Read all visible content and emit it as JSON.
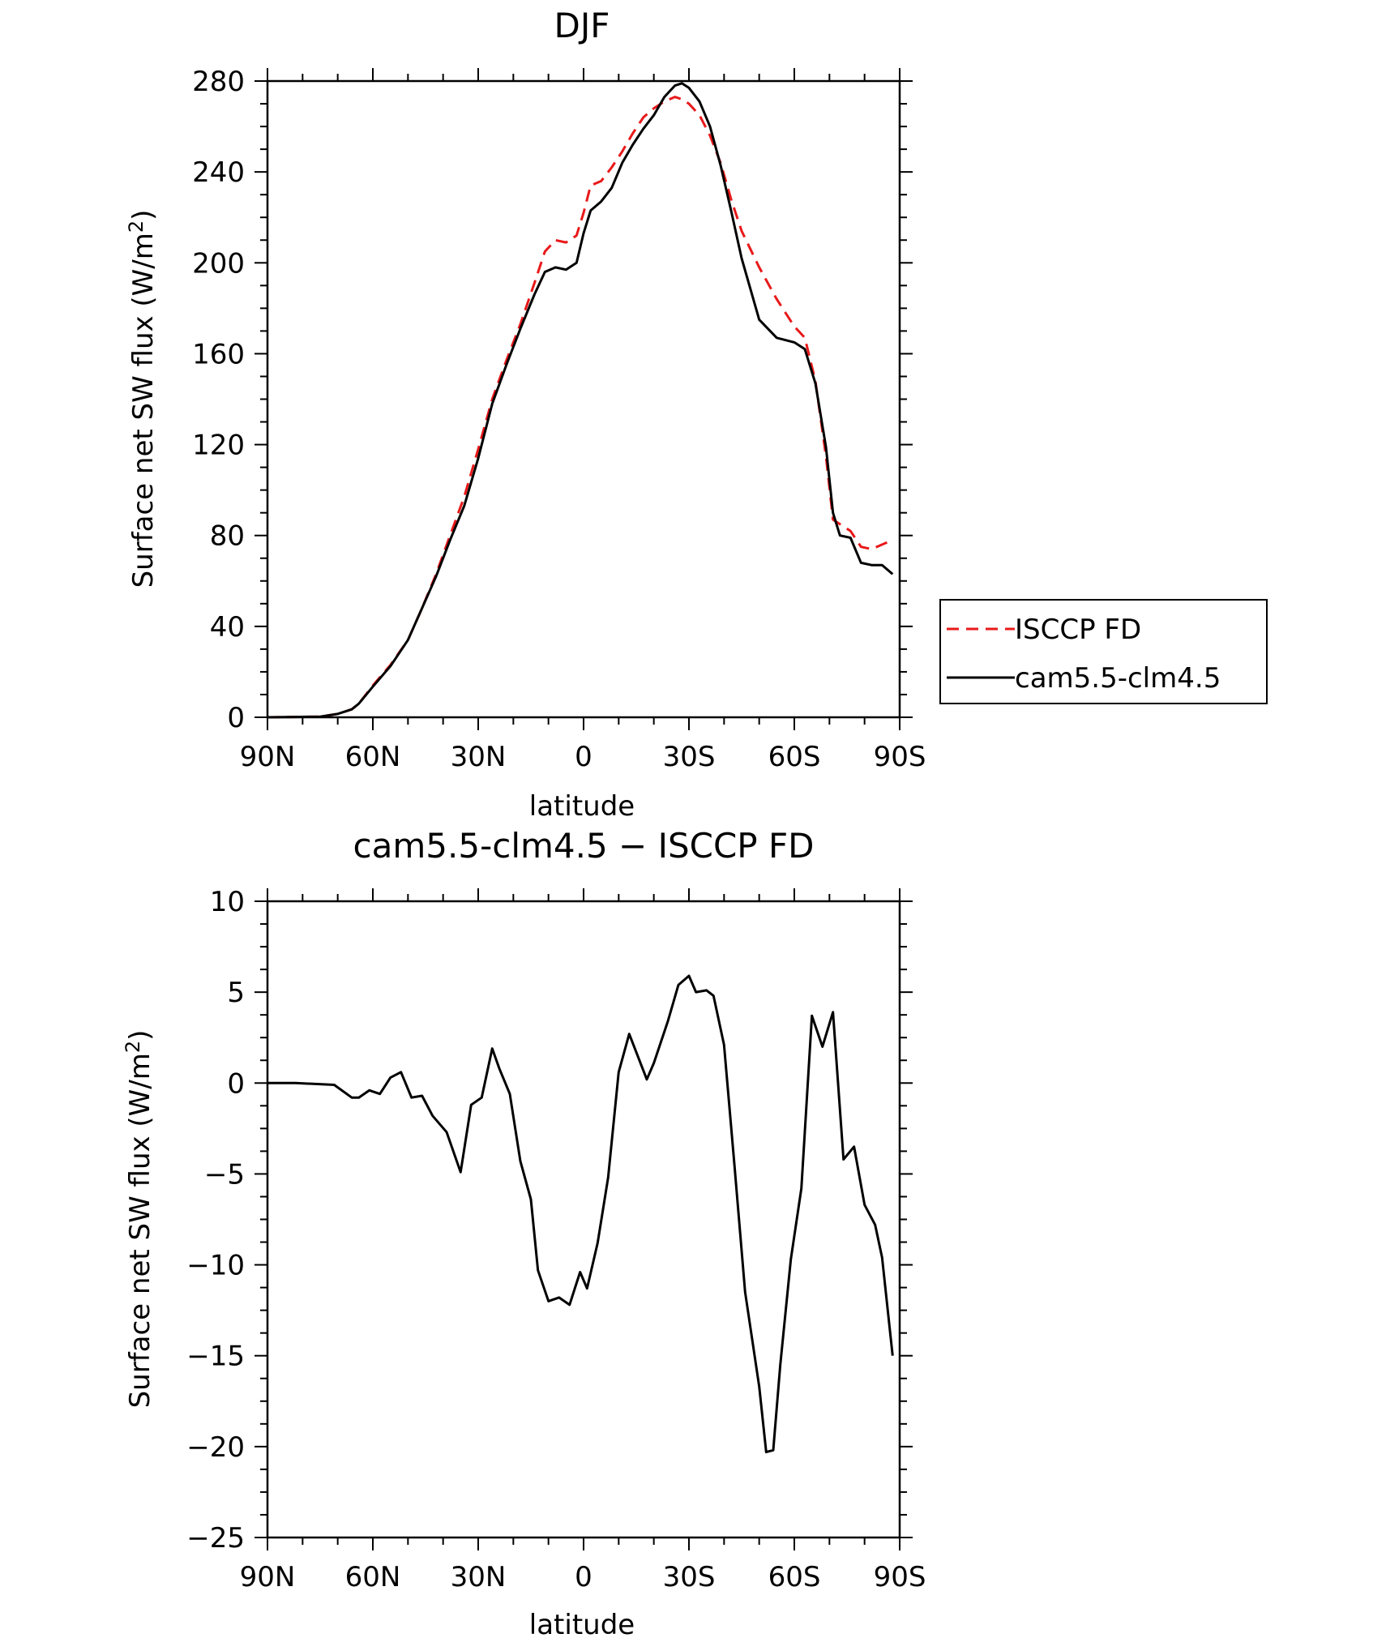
{
  "chart_data": [
    {
      "type": "line",
      "title": "DJF",
      "xlabel": "latitude",
      "ylabel": "Surface net SW flux (W/m²)",
      "xlim": [
        -90,
        90
      ],
      "ylim": [
        0,
        280
      ],
      "xticks": [
        -90,
        -60,
        -30,
        0,
        30,
        60,
        90
      ],
      "xtick_labels": [
        "90N",
        "60N",
        "30N",
        "0",
        "30S",
        "60S",
        "90S"
      ],
      "yticks": [
        0,
        40,
        80,
        120,
        160,
        200,
        240,
        280
      ],
      "ytick_labels": [
        "0",
        "40",
        "80",
        "120",
        "160",
        "200",
        "240",
        "280"
      ],
      "legend_position": "right",
      "series": [
        {
          "name": "ISCCP FD",
          "color": "#e8191a",
          "dash": "dashed",
          "x": [
            -90,
            -75,
            -70,
            -66,
            -64,
            -60,
            -55,
            -50,
            -46,
            -42,
            -38,
            -34,
            -30,
            -26,
            -22,
            -18,
            -14,
            -11,
            -8,
            -5,
            -2,
            0,
            2,
            5,
            8,
            11,
            14,
            17,
            20,
            23,
            26,
            28,
            30,
            33,
            36,
            39,
            42,
            45,
            50,
            55,
            60,
            63,
            66,
            69,
            71,
            73,
            76,
            79,
            82,
            85,
            88
          ],
          "y": [
            0,
            0.3,
            1.5,
            3.5,
            6,
            14,
            23,
            34,
            48,
            63,
            80,
            97,
            118,
            140,
            157,
            173,
            191,
            205,
            210,
            209,
            212,
            222,
            234,
            236,
            242,
            249,
            257,
            264,
            268,
            271,
            273,
            272,
            270,
            265,
            256,
            244,
            228,
            214,
            198,
            184,
            172,
            167,
            148,
            115,
            87,
            85,
            82,
            75,
            74,
            76,
            78
          ]
        },
        {
          "name": "cam5.5-clm4.5",
          "color": "#000000",
          "dash": "solid",
          "x": [
            -90,
            -75,
            -70,
            -66,
            -64,
            -60,
            -55,
            -50,
            -46,
            -42,
            -38,
            -34,
            -30,
            -26,
            -22,
            -18,
            -14,
            -11,
            -8,
            -5,
            -2,
            0,
            2,
            5,
            8,
            11,
            14,
            17,
            20,
            23,
            26,
            28,
            30,
            33,
            36,
            39,
            42,
            45,
            50,
            55,
            60,
            63,
            66,
            69,
            71,
            73,
            76,
            79,
            82,
            85,
            88
          ],
          "y": [
            0,
            0.3,
            1.5,
            3.5,
            6,
            13.5,
            22.5,
            34,
            48,
            62,
            78,
            93,
            114,
            138,
            155,
            171,
            186,
            196,
            198,
            197,
            200,
            213,
            223,
            227,
            233,
            244,
            252,
            259,
            265,
            273,
            278,
            279,
            277,
            271,
            260,
            243,
            223,
            202,
            175,
            167,
            165,
            162,
            147,
            119,
            90,
            80,
            79,
            68,
            67,
            67,
            63
          ]
        }
      ]
    },
    {
      "type": "line",
      "title": "cam5.5-clm4.5 − ISCCP FD",
      "xlabel": "latitude",
      "ylabel": "Surface net SW flux (W/m²)",
      "xlim": [
        -90,
        90
      ],
      "ylim": [
        -25,
        10
      ],
      "xticks": [
        -90,
        -60,
        -30,
        0,
        30,
        60,
        90
      ],
      "xtick_labels": [
        "90N",
        "60N",
        "30N",
        "0",
        "30S",
        "60S",
        "90S"
      ],
      "yticks": [
        -25,
        -20,
        -15,
        -10,
        -5,
        0,
        5,
        10
      ],
      "ytick_labels": [
        "−25",
        "−20",
        "−15",
        "−10",
        "−5",
        "0",
        "5",
        "10"
      ],
      "series": [
        {
          "name": "",
          "color": "#000000",
          "dash": "solid",
          "x": [
            -90,
            -82,
            -71,
            -66,
            -64,
            -61,
            -58,
            -55,
            -52,
            -49,
            -46,
            -43,
            -39,
            -35,
            -32,
            -29,
            -26,
            -24,
            -21,
            -18,
            -15,
            -13,
            -10,
            -7,
            -4,
            -1,
            1,
            4,
            7,
            10,
            13,
            18,
            20,
            24,
            27,
            30,
            32,
            35,
            37,
            40,
            43,
            46,
            50,
            52,
            54,
            56,
            59,
            62,
            65,
            68,
            71,
            74,
            77,
            80,
            83,
            85,
            88
          ],
          "y": [
            0,
            0,
            -0.1,
            -0.8,
            -0.8,
            -0.4,
            -0.6,
            0.3,
            0.6,
            -0.8,
            -0.7,
            -1.8,
            -2.7,
            -4.9,
            -1.2,
            -0.8,
            1.9,
            0.8,
            -0.6,
            -4.3,
            -6.4,
            -10.3,
            -12,
            -11.8,
            -12.2,
            -10.4,
            -11.3,
            -8.8,
            -5.2,
            0.6,
            2.7,
            0.2,
            1.1,
            3.4,
            5.4,
            5.9,
            5,
            5.1,
            4.8,
            2.1,
            -4.6,
            -11.5,
            -16.7,
            -20.3,
            -20.2,
            -15.5,
            -9.7,
            -5.8,
            3.7,
            2,
            3.9,
            -4.2,
            -3.5,
            -6.7,
            -7.8,
            -9.6,
            -15
          ]
        }
      ]
    }
  ]
}
